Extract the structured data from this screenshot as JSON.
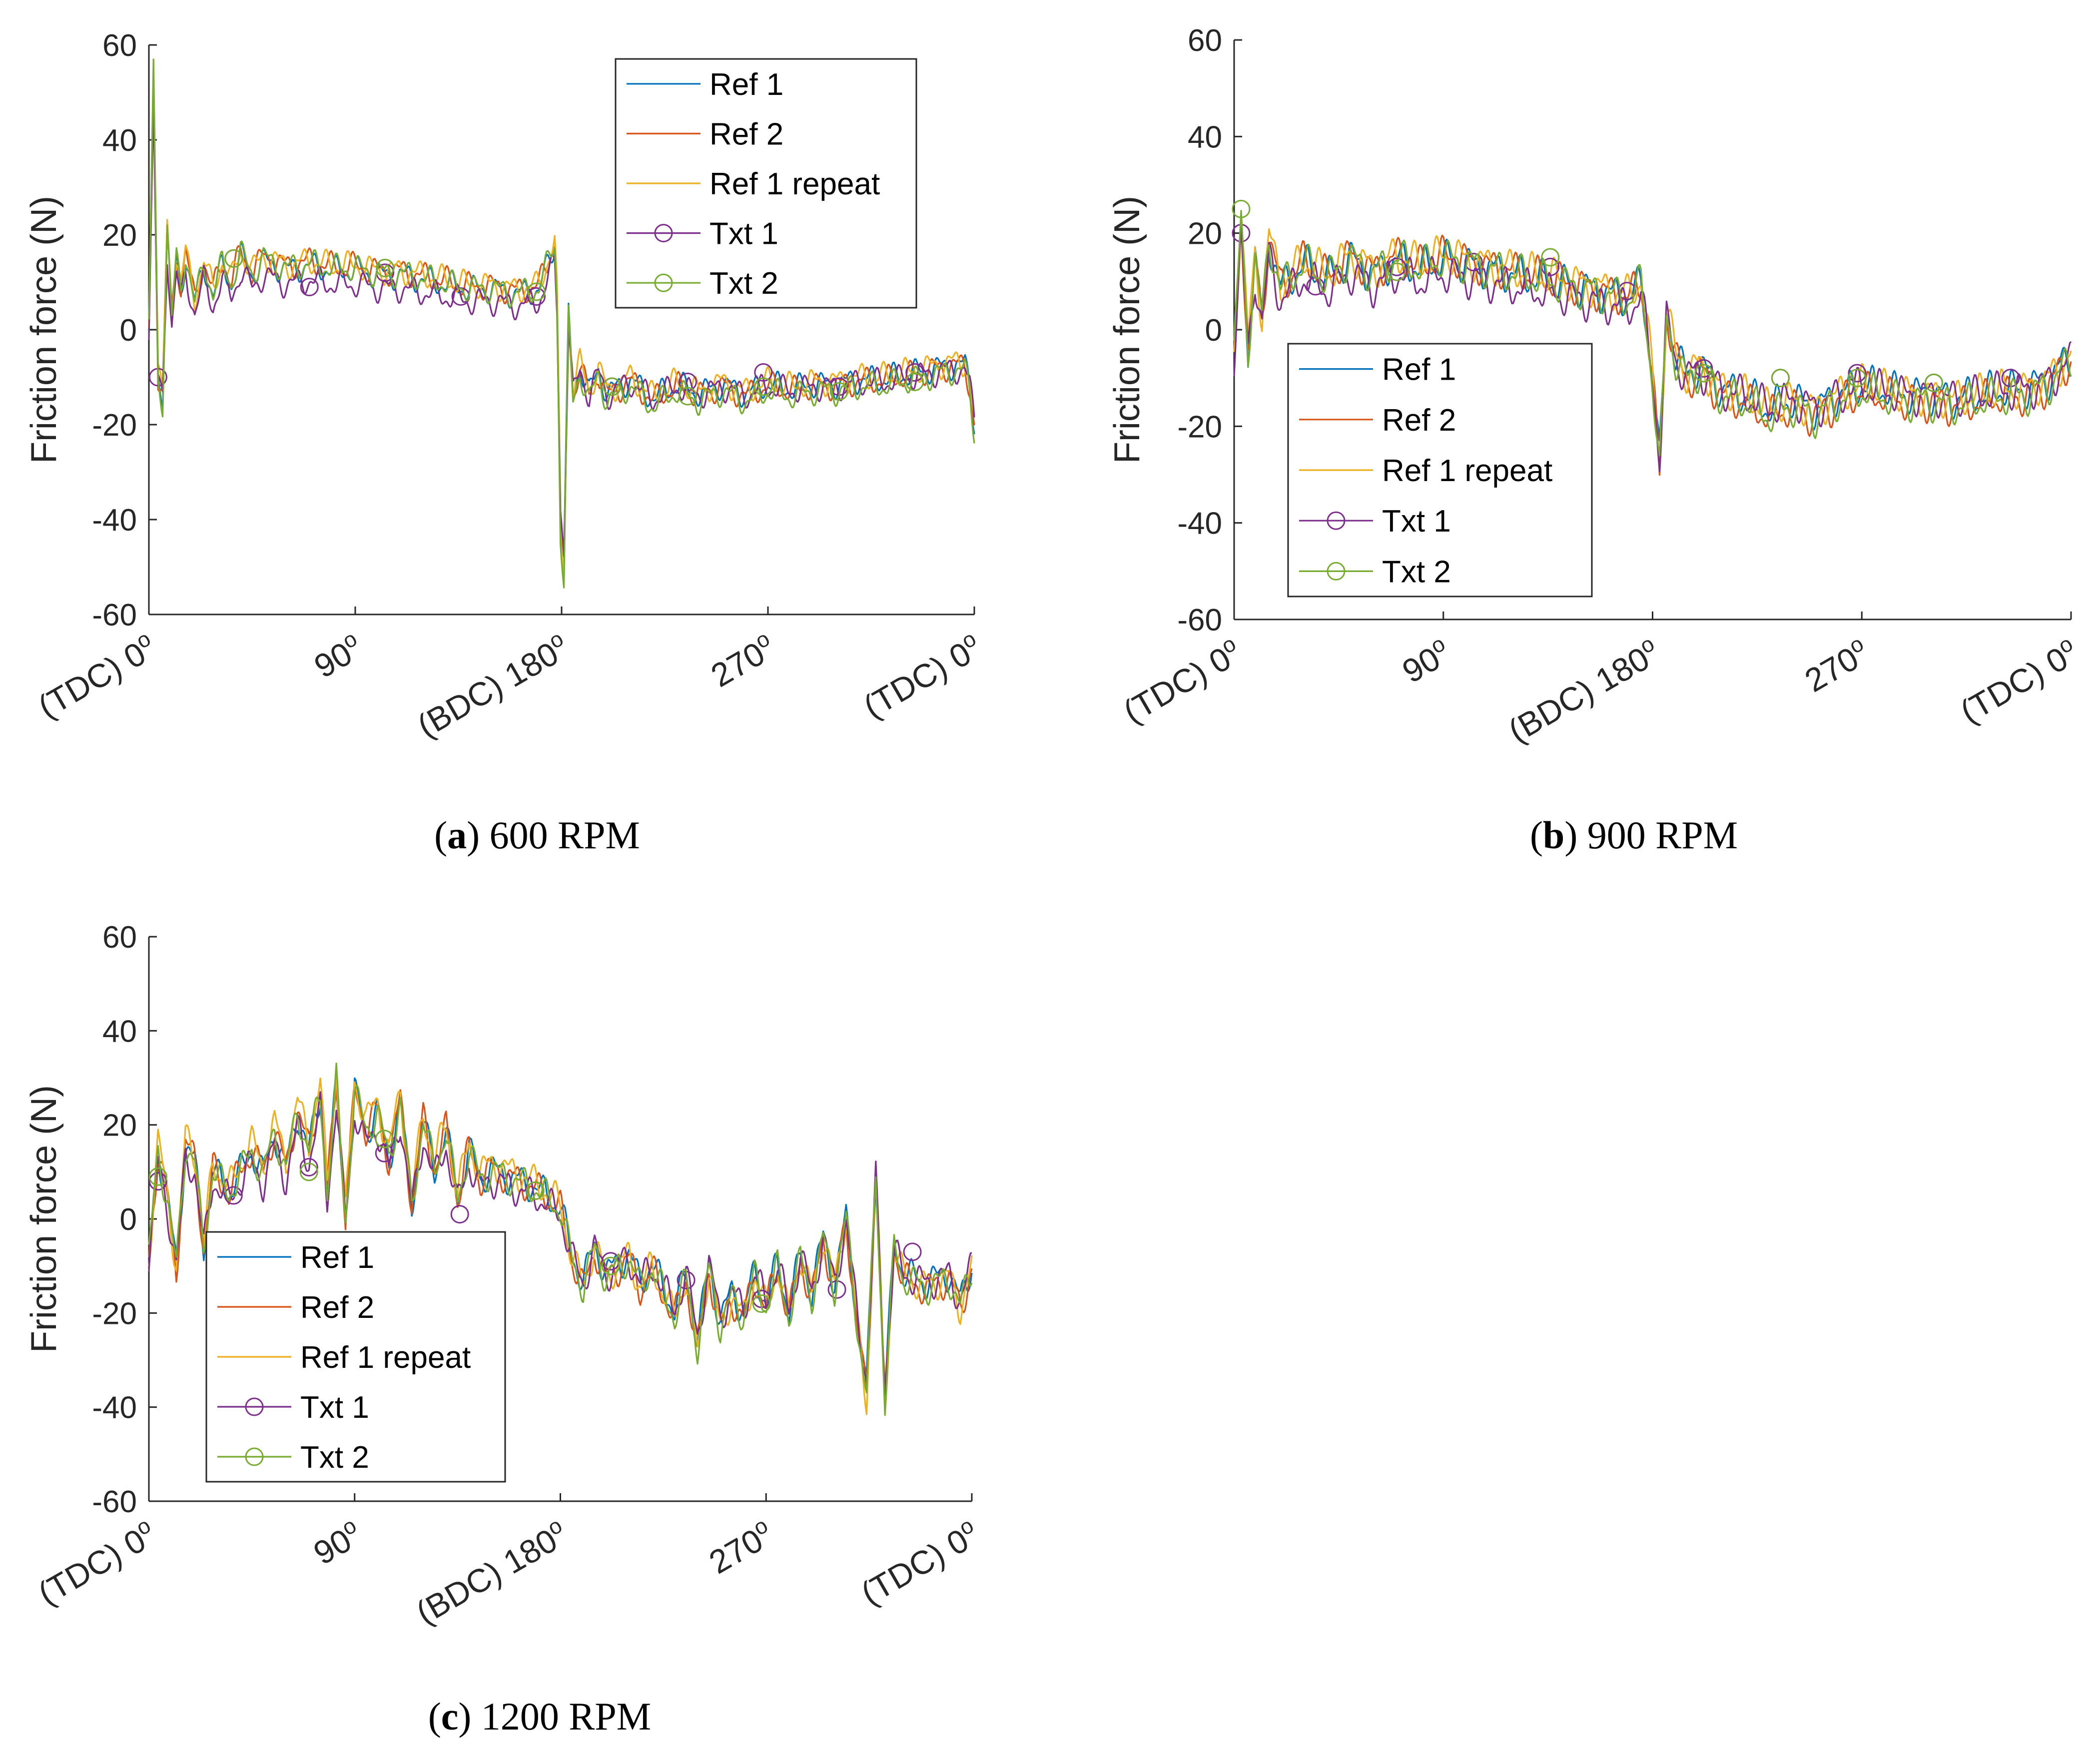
{
  "chart_data": [
    {
      "type": "line",
      "panel_id": "a",
      "caption_letter": "a",
      "caption_text": " 600 RPM",
      "ylabel": "Friction force (N)",
      "xlabel": "",
      "ylim": [
        -60,
        60
      ],
      "yticks": [
        -60,
        -40,
        -20,
        0,
        20,
        40,
        60
      ],
      "xlim": [
        0,
        360
      ],
      "xticks": [
        0,
        90,
        180,
        270,
        360
      ],
      "xtick_labels": [
        {
          "text": "(TDC) 0",
          "sup": "o"
        },
        {
          "text": "90",
          "sup": "o"
        },
        {
          "text": "(BDC) 180",
          "sup": "o"
        },
        {
          "text": "270",
          "sup": "o"
        },
        {
          "text": "(TDC) 0",
          "sup": "o"
        }
      ],
      "legend": {
        "position": "top-right"
      },
      "key": [
        [
          0,
          0
        ],
        [
          2,
          52
        ],
        [
          4,
          -10
        ],
        [
          6,
          -14
        ],
        [
          8,
          20
        ],
        [
          10,
          2
        ],
        [
          12,
          14
        ],
        [
          14,
          8
        ],
        [
          16,
          15
        ],
        [
          20,
          5
        ],
        [
          24,
          13
        ],
        [
          28,
          7
        ],
        [
          32,
          13
        ],
        [
          36,
          9
        ],
        [
          40,
          15
        ],
        [
          45,
          11
        ],
        [
          50,
          14
        ],
        [
          60,
          12
        ],
        [
          70,
          13
        ],
        [
          80,
          12
        ],
        [
          90,
          12
        ],
        [
          100,
          11
        ],
        [
          110,
          11
        ],
        [
          120,
          10
        ],
        [
          130,
          9
        ],
        [
          140,
          8
        ],
        [
          150,
          8
        ],
        [
          160,
          7
        ],
        [
          170,
          8
        ],
        [
          174,
          13
        ],
        [
          177,
          17
        ],
        [
          178,
          6
        ],
        [
          179.5,
          -40
        ],
        [
          181,
          -50
        ],
        [
          183,
          2
        ],
        [
          185,
          -14
        ],
        [
          188,
          -8
        ],
        [
          192,
          -14
        ],
        [
          196,
          -9
        ],
        [
          200,
          -14
        ],
        [
          210,
          -11
        ],
        [
          220,
          -15
        ],
        [
          230,
          -12
        ],
        [
          240,
          -14
        ],
        [
          250,
          -12
        ],
        [
          260,
          -14
        ],
        [
          270,
          -12
        ],
        [
          280,
          -13
        ],
        [
          290,
          -12
        ],
        [
          300,
          -12
        ],
        [
          310,
          -11
        ],
        [
          320,
          -11
        ],
        [
          330,
          -10
        ],
        [
          340,
          -9
        ],
        [
          350,
          -8
        ],
        [
          356,
          -8
        ],
        [
          358,
          -12
        ],
        [
          360,
          -20
        ]
      ],
      "amp": 3.2,
      "series": [
        {
          "name": "Ref 1",
          "color": "#0072BD",
          "offset": 0.5,
          "scale": 1.0,
          "marker": false,
          "seed": 1.3
        },
        {
          "name": "Ref 2",
          "color": "#D95319",
          "offset": 0.8,
          "scale": 1.05,
          "marker": false,
          "seed": 2.7
        },
        {
          "name": "Ref 1 repeat",
          "color": "#EDB120",
          "offset": 1.3,
          "scale": 1.02,
          "marker": false,
          "seed": 4.1
        },
        {
          "name": "Txt 1",
          "color": "#7E2F8E",
          "offset": -1.2,
          "scale": 0.9,
          "marker": true,
          "seed": 5.9,
          "markers": [
            [
              4,
              -10
            ],
            [
              37,
              15
            ],
            [
              70,
              9
            ],
            [
              103,
              12
            ],
            [
              136,
              7
            ],
            [
              169,
              7
            ],
            [
              202,
              -12
            ],
            [
              235,
              -11
            ],
            [
              268,
              -9
            ],
            [
              301,
              -12
            ],
            [
              334,
              -9
            ]
          ]
        },
        {
          "name": "Txt 2",
          "color": "#77AC30",
          "offset": 0.0,
          "scale": 1.08,
          "marker": true,
          "seed": 7.3,
          "markers": [
            [
              37,
              15
            ],
            [
              103,
              13
            ],
            [
              169,
              8
            ],
            [
              202,
              -12
            ],
            [
              235,
              -14
            ],
            [
              268,
              -12
            ],
            [
              301,
              -13
            ],
            [
              334,
              -11
            ]
          ]
        }
      ]
    },
    {
      "type": "line",
      "panel_id": "b",
      "caption_letter": "b",
      "caption_text": " 900 RPM",
      "ylabel": "Friction force (N)",
      "xlabel": "",
      "ylim": [
        -60,
        60
      ],
      "yticks": [
        -60,
        -40,
        -20,
        0,
        20,
        40,
        60
      ],
      "xlim": [
        0,
        360
      ],
      "xticks": [
        0,
        90,
        180,
        270,
        360
      ],
      "xtick_labels": [
        {
          "text": "(TDC) 0",
          "sup": "o"
        },
        {
          "text": "90",
          "sup": "o"
        },
        {
          "text": "(BDC) 180",
          "sup": "o"
        },
        {
          "text": "270",
          "sup": "o"
        },
        {
          "text": "(TDC) 0",
          "sup": "o"
        }
      ],
      "legend": {
        "position": "bottom-left"
      },
      "key": [
        [
          0,
          -5
        ],
        [
          3,
          22
        ],
        [
          6,
          -4
        ],
        [
          9,
          14
        ],
        [
          12,
          2
        ],
        [
          15,
          18
        ],
        [
          20,
          8
        ],
        [
          30,
          13
        ],
        [
          40,
          10
        ],
        [
          50,
          14
        ],
        [
          60,
          11
        ],
        [
          70,
          14
        ],
        [
          80,
          12
        ],
        [
          90,
          14
        ],
        [
          100,
          13
        ],
        [
          110,
          12
        ],
        [
          120,
          11
        ],
        [
          130,
          10
        ],
        [
          140,
          9
        ],
        [
          150,
          8
        ],
        [
          160,
          7
        ],
        [
          170,
          6
        ],
        [
          175,
          9
        ],
        [
          177,
          2
        ],
        [
          180,
          -10
        ],
        [
          183,
          -28
        ],
        [
          186,
          3
        ],
        [
          190,
          -6
        ],
        [
          195,
          -10
        ],
        [
          200,
          -8
        ],
        [
          210,
          -13
        ],
        [
          220,
          -14
        ],
        [
          230,
          -17
        ],
        [
          240,
          -15
        ],
        [
          250,
          -17
        ],
        [
          260,
          -14
        ],
        [
          270,
          -12
        ],
        [
          280,
          -13
        ],
        [
          290,
          -14
        ],
        [
          300,
          -14
        ],
        [
          310,
          -15
        ],
        [
          320,
          -14
        ],
        [
          330,
          -13
        ],
        [
          340,
          -13
        ],
        [
          350,
          -11
        ],
        [
          360,
          -6
        ]
      ],
      "amp": 4.5,
      "series": [
        {
          "name": "Ref 1",
          "color": "#0072BD",
          "offset": 0.6,
          "scale": 1.0,
          "marker": false,
          "seed": 1.1
        },
        {
          "name": "Ref 2",
          "color": "#D95319",
          "offset": 0.2,
          "scale": 1.08,
          "marker": false,
          "seed": 2.3
        },
        {
          "name": "Ref 1 repeat",
          "color": "#EDB120",
          "offset": 1.1,
          "scale": 1.04,
          "marker": false,
          "seed": 3.9
        },
        {
          "name": "Txt 1",
          "color": "#7E2F8E",
          "offset": -1.0,
          "scale": 0.9,
          "marker": true,
          "seed": 5.2,
          "markers": [
            [
              3,
              20
            ],
            [
              35,
              9
            ],
            [
              70,
              13
            ],
            [
              103,
              14
            ],
            [
              136,
              13
            ],
            [
              169,
              8
            ],
            [
              202,
              -8
            ],
            [
              235,
              -10
            ],
            [
              268,
              -9
            ],
            [
              301,
              -11
            ],
            [
              334,
              -10
            ]
          ]
        },
        {
          "name": "Txt 2",
          "color": "#77AC30",
          "offset": 0.0,
          "scale": 1.06,
          "marker": true,
          "seed": 6.8,
          "markers": [
            [
              3,
              25
            ],
            [
              70,
              12
            ],
            [
              136,
              15
            ],
            [
              202,
              -9
            ],
            [
              235,
              -10
            ],
            [
              268,
              -10
            ],
            [
              301,
              -11
            ]
          ]
        }
      ]
    },
    {
      "type": "line",
      "panel_id": "c",
      "caption_letter": "c",
      "caption_text": " 1200 RPM",
      "ylabel": "Friction force (N)",
      "xlabel": "",
      "ylim": [
        -60,
        60
      ],
      "yticks": [
        -60,
        -40,
        -20,
        0,
        20,
        40,
        60
      ],
      "xlim": [
        0,
        360
      ],
      "xticks": [
        0,
        90,
        180,
        270,
        360
      ],
      "xtick_labels": [
        {
          "text": "(TDC) 0",
          "sup": "o"
        },
        {
          "text": "90",
          "sup": "o"
        },
        {
          "text": "(BDC) 180",
          "sup": "o"
        },
        {
          "text": "270",
          "sup": "o"
        },
        {
          "text": "(TDC) 0",
          "sup": "o"
        }
      ],
      "legend": {
        "position": "bottom-left"
      },
      "key": [
        [
          0,
          -8
        ],
        [
          4,
          14
        ],
        [
          8,
          4
        ],
        [
          12,
          -10
        ],
        [
          16,
          15
        ],
        [
          20,
          12
        ],
        [
          24,
          -6
        ],
        [
          28,
          10
        ],
        [
          35,
          5
        ],
        [
          45,
          14
        ],
        [
          50,
          9
        ],
        [
          55,
          18
        ],
        [
          60,
          10
        ],
        [
          65,
          22
        ],
        [
          70,
          14
        ],
        [
          75,
          26
        ],
        [
          78,
          5
        ],
        [
          82,
          28
        ],
        [
          86,
          0
        ],
        [
          90,
          26
        ],
        [
          95,
          18
        ],
        [
          100,
          22
        ],
        [
          105,
          12
        ],
        [
          110,
          24
        ],
        [
          115,
          3
        ],
        [
          120,
          20
        ],
        [
          125,
          10
        ],
        [
          130,
          18
        ],
        [
          135,
          4
        ],
        [
          140,
          14
        ],
        [
          145,
          8
        ],
        [
          150,
          10
        ],
        [
          160,
          8
        ],
        [
          170,
          6
        ],
        [
          180,
          2
        ],
        [
          185,
          -8
        ],
        [
          190,
          -14
        ],
        [
          195,
          -6
        ],
        [
          200,
          -12
        ],
        [
          210,
          -8
        ],
        [
          215,
          -14
        ],
        [
          220,
          -10
        ],
        [
          230,
          -20
        ],
        [
          235,
          -12
        ],
        [
          240,
          -26
        ],
        [
          245,
          -10
        ],
        [
          250,
          -22
        ],
        [
          255,
          -16
        ],
        [
          260,
          -20
        ],
        [
          265,
          -12
        ],
        [
          270,
          -18
        ],
        [
          275,
          -10
        ],
        [
          280,
          -20
        ],
        [
          285,
          -8
        ],
        [
          290,
          -16
        ],
        [
          295,
          -4
        ],
        [
          300,
          -14
        ],
        [
          305,
          0
        ],
        [
          310,
          -22
        ],
        [
          314,
          -36
        ],
        [
          318,
          10
        ],
        [
          322,
          -38
        ],
        [
          326,
          -6
        ],
        [
          330,
          -12
        ],
        [
          340,
          -14
        ],
        [
          350,
          -12
        ],
        [
          355,
          -18
        ],
        [
          360,
          -10
        ]
      ],
      "amp": 4.0,
      "series": [
        {
          "name": "Ref 1",
          "color": "#0072BD",
          "offset": 0.5,
          "scale": 1.0,
          "marker": false,
          "seed": 1.7
        },
        {
          "name": "Ref 2",
          "color": "#D95319",
          "offset": 0.0,
          "scale": 1.06,
          "marker": false,
          "seed": 2.9
        },
        {
          "name": "Ref 1 repeat",
          "color": "#EDB120",
          "offset": 1.0,
          "scale": 1.1,
          "marker": false,
          "seed": 4.4
        },
        {
          "name": "Txt 1",
          "color": "#7E2F8E",
          "offset": -0.8,
          "scale": 0.92,
          "marker": true,
          "seed": 5.5,
          "markers": [
            [
              4,
              8
            ],
            [
              37,
              5
            ],
            [
              70,
              11
            ],
            [
              103,
              14
            ],
            [
              136,
              1
            ],
            [
              169,
              6
            ],
            [
              202,
              -9
            ],
            [
              235,
              -13
            ],
            [
              268,
              -17
            ],
            [
              301,
              -15
            ],
            [
              334,
              -7
            ]
          ]
        },
        {
          "name": "Txt 2",
          "color": "#77AC30",
          "offset": 0.0,
          "scale": 1.04,
          "marker": true,
          "seed": 7.1,
          "markers": [
            [
              4,
              9
            ],
            [
              70,
              10
            ],
            [
              103,
              17
            ],
            [
              169,
              6
            ],
            [
              202,
              -10
            ],
            [
              268,
              -18
            ]
          ]
        }
      ]
    }
  ]
}
